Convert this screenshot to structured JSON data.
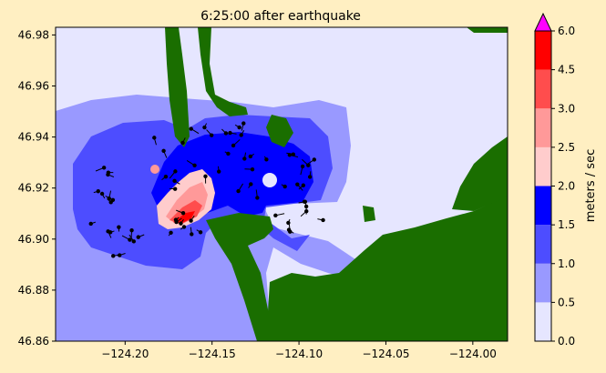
{
  "chart_data": {
    "type": "heatmap",
    "title": "6:25:00 after earthquake",
    "xlabel": "",
    "ylabel": "",
    "xlim": [
      -124.24,
      -123.98
    ],
    "ylim": [
      46.86,
      46.983
    ],
    "x_ticks": [
      -124.2,
      -124.15,
      -124.1,
      -124.05,
      -124.0
    ],
    "x_tick_labels": [
      "−124.20",
      "−124.15",
      "−124.10",
      "−124.05",
      "−124.00"
    ],
    "y_ticks": [
      46.86,
      46.88,
      46.9,
      46.92,
      46.94,
      46.96,
      46.98
    ],
    "y_tick_labels": [
      "46.86",
      "46.88",
      "46.90",
      "46.92",
      "46.94",
      "46.96",
      "46.98"
    ],
    "colorbar": {
      "label": "meters / sec",
      "levels": [
        0.0,
        0.5,
        1.0,
        1.5,
        2.0,
        2.5,
        3.0,
        4.5,
        6.0
      ],
      "tick_labels": [
        "0.0",
        "0.5",
        "1.0",
        "1.5",
        "2.0",
        "2.5",
        "3.0",
        "4.5",
        "6.0"
      ],
      "colors": [
        "#e6e6ff",
        "#9999ff",
        "#4d4dff",
        "#0000ff",
        "#ffcccc",
        "#ff9999",
        "#ff4d4d",
        "#ff0000"
      ],
      "extend_color": "#ff00ff",
      "extend": "max"
    },
    "land_color": "#1a6e00",
    "background_color": "#ffefc2"
  }
}
